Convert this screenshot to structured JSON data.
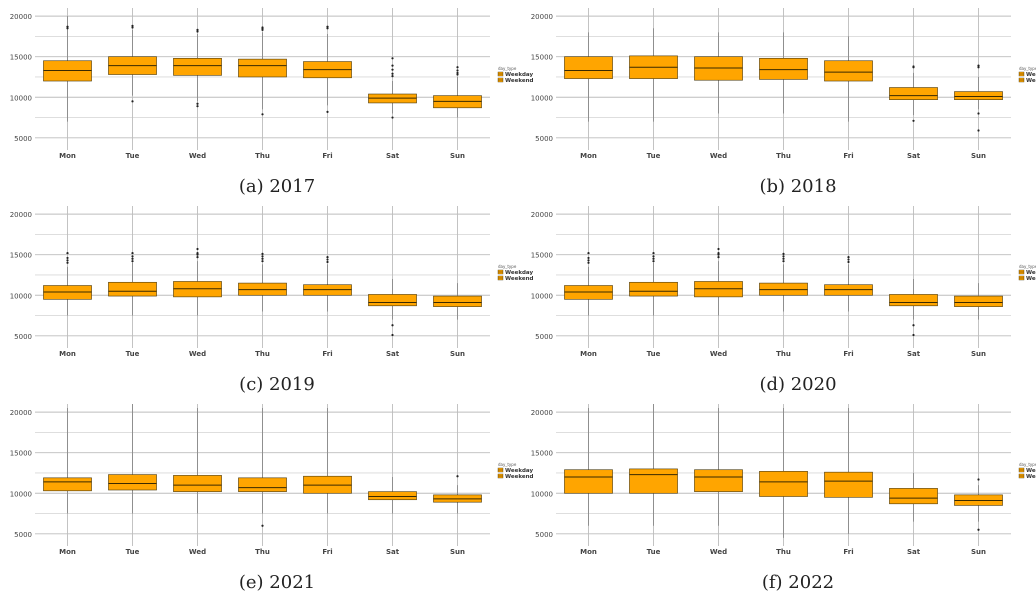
{
  "figure": {
    "captions": [
      "(a) 2017",
      "(b) 2018",
      "(c) 2019",
      "(d) 2020",
      "(e) 2021",
      "(f) 2022"
    ]
  },
  "colors": {
    "box_fill": "#ffa500",
    "box_stroke": "#4a3a10",
    "grid": "#bdbdbd",
    "median": "#3a2a00"
  },
  "chart_data": [
    {
      "type": "box",
      "title": "",
      "categories": [
        "Mon",
        "Tue",
        "Wed",
        "Thu",
        "Fri",
        "Sat",
        "Sun"
      ],
      "ylim": [
        3500,
        21000
      ],
      "yticks": [
        5000,
        10000,
        15000,
        20000
      ],
      "legend": {
        "title": "day_type",
        "entries": [
          "Weekday",
          "Weekend"
        ],
        "position": "right"
      },
      "grid": true,
      "boxes": [
        {
          "q1": 12000,
          "median": 13300,
          "q3": 14500,
          "whisker_low": 7000,
          "whisker_high": 20000,
          "outliers": [
            18500,
            18700
          ]
        },
        {
          "q1": 12800,
          "median": 13900,
          "q3": 15000,
          "whisker_low": 10200,
          "whisker_high": 18300,
          "outliers": [
            18600,
            18800,
            9500
          ]
        },
        {
          "q1": 12700,
          "median": 13900,
          "q3": 14800,
          "whisker_low": 9500,
          "whisker_high": 17800,
          "outliers": [
            18100,
            18300,
            9200,
            8900
          ]
        },
        {
          "q1": 12500,
          "median": 13900,
          "q3": 14700,
          "whisker_low": 8500,
          "whisker_high": 18000,
          "outliers": [
            18300,
            18500,
            18600,
            7900
          ]
        },
        {
          "q1": 12400,
          "median": 13400,
          "q3": 14400,
          "whisker_low": 9000,
          "whisker_high": 17800,
          "outliers": [
            18500,
            18700,
            8200
          ]
        },
        {
          "q1": 9300,
          "median": 9900,
          "q3": 10400,
          "whisker_low": 8000,
          "whisker_high": 12000,
          "outliers": [
            12600,
            12900,
            13400,
            13900,
            14800,
            7500
          ]
        },
        {
          "q1": 8700,
          "median": 9500,
          "q3": 10200,
          "whisker_low": 7500,
          "whisker_high": 12500,
          "outliers": [
            12800,
            13000,
            13300,
            13700
          ]
        }
      ]
    },
    {
      "type": "box",
      "title": "",
      "categories": [
        "Mon",
        "Tue",
        "Wed",
        "Thu",
        "Fri",
        "Sat",
        "Sun"
      ],
      "ylim": [
        3500,
        21000
      ],
      "yticks": [
        5000,
        10000,
        15000,
        20000
      ],
      "legend": {
        "title": "day_type",
        "entries": [
          "Weekday",
          "Weekend"
        ],
        "position": "right"
      },
      "grid": true,
      "boxes": [
        {
          "q1": 12300,
          "median": 13300,
          "q3": 15000,
          "whisker_low": 7000,
          "whisker_high": 18000,
          "outliers": []
        },
        {
          "q1": 12300,
          "median": 13700,
          "q3": 15100,
          "whisker_low": 7000,
          "whisker_high": 18500,
          "outliers": []
        },
        {
          "q1": 12100,
          "median": 13600,
          "q3": 15000,
          "whisker_low": 8000,
          "whisker_high": 18000,
          "outliers": []
        },
        {
          "q1": 12200,
          "median": 13400,
          "q3": 14800,
          "whisker_low": 8000,
          "whisker_high": 18000,
          "outliers": []
        },
        {
          "q1": 12000,
          "median": 13100,
          "q3": 14500,
          "whisker_low": 7000,
          "whisker_high": 17500,
          "outliers": []
        },
        {
          "q1": 9700,
          "median": 10200,
          "q3": 11200,
          "whisker_low": 7800,
          "whisker_high": 13000,
          "outliers": [
            13700,
            13800,
            7100
          ]
        },
        {
          "q1": 9700,
          "median": 10100,
          "q3": 10700,
          "whisker_low": 8500,
          "whisker_high": 12500,
          "outliers": [
            13700,
            13900,
            8000,
            5900
          ]
        }
      ]
    },
    {
      "type": "box",
      "title": "",
      "categories": [
        "Mon",
        "Tue",
        "Wed",
        "Thu",
        "Fri",
        "Sat",
        "Sun"
      ],
      "ylim": [
        3500,
        21000
      ],
      "yticks": [
        5000,
        10000,
        15000,
        20000
      ],
      "legend": {
        "title": "day_type",
        "entries": [
          "Weekday",
          "Weekend"
        ],
        "position": "right"
      },
      "grid": true,
      "boxes": [
        {
          "q1": 9500,
          "median": 10400,
          "q3": 11200,
          "whisker_low": 7500,
          "whisker_high": 13500,
          "outliers": [
            14000,
            14300,
            14600,
            15200
          ]
        },
        {
          "q1": 9900,
          "median": 10500,
          "q3": 11600,
          "whisker_low": 7500,
          "whisker_high": 14000,
          "outliers": [
            14200,
            14500,
            14800,
            15200
          ]
        },
        {
          "q1": 9800,
          "median": 10800,
          "q3": 11700,
          "whisker_low": 7500,
          "whisker_high": 14200,
          "outliers": [
            14700,
            15000,
            15200,
            15700
          ]
        },
        {
          "q1": 10000,
          "median": 10700,
          "q3": 11500,
          "whisker_low": 8000,
          "whisker_high": 13800,
          "outliers": [
            14200,
            14500,
            14800,
            15100
          ]
        },
        {
          "q1": 10000,
          "median": 10700,
          "q3": 11300,
          "whisker_low": 8000,
          "whisker_high": 13800,
          "outliers": [
            14100,
            14400,
            14700
          ]
        },
        {
          "q1": 8700,
          "median": 9100,
          "q3": 10100,
          "whisker_low": 7000,
          "whisker_high": 12000,
          "outliers": [
            6300,
            5100
          ]
        },
        {
          "q1": 8600,
          "median": 9100,
          "q3": 9900,
          "whisker_low": 7000,
          "whisker_high": 11500,
          "outliers": []
        }
      ]
    },
    {
      "type": "box",
      "title": "",
      "categories": [
        "Mon",
        "Tue",
        "Wed",
        "Thu",
        "Fri",
        "Sat",
        "Sun"
      ],
      "ylim": [
        3500,
        21000
      ],
      "yticks": [
        5000,
        10000,
        15000,
        20000
      ],
      "legend": {
        "title": "day_type",
        "entries": [
          "Weekday",
          "Weekend"
        ],
        "position": "right"
      },
      "grid": true,
      "boxes": [
        {
          "q1": 9500,
          "median": 10400,
          "q3": 11200,
          "whisker_low": 7500,
          "whisker_high": 13500,
          "outliers": [
            14000,
            14300,
            14600,
            15200
          ]
        },
        {
          "q1": 9900,
          "median": 10500,
          "q3": 11600,
          "whisker_low": 7500,
          "whisker_high": 14000,
          "outliers": [
            14200,
            14500,
            14800,
            15200
          ]
        },
        {
          "q1": 9800,
          "median": 10800,
          "q3": 11700,
          "whisker_low": 7500,
          "whisker_high": 14200,
          "outliers": [
            14700,
            15000,
            15200,
            15700
          ]
        },
        {
          "q1": 10000,
          "median": 10700,
          "q3": 11500,
          "whisker_low": 8000,
          "whisker_high": 13800,
          "outliers": [
            14200,
            14500,
            14800,
            15100
          ]
        },
        {
          "q1": 10000,
          "median": 10700,
          "q3": 11300,
          "whisker_low": 8000,
          "whisker_high": 13800,
          "outliers": [
            14100,
            14400,
            14700
          ]
        },
        {
          "q1": 8700,
          "median": 9100,
          "q3": 10100,
          "whisker_low": 7000,
          "whisker_high": 12000,
          "outliers": [
            6300,
            5100
          ]
        },
        {
          "q1": 8600,
          "median": 9100,
          "q3": 9900,
          "whisker_low": 7000,
          "whisker_high": 11500,
          "outliers": []
        }
      ]
    },
    {
      "type": "box",
      "title": "",
      "categories": [
        "Mon",
        "Tue",
        "Wed",
        "Thu",
        "Fri",
        "Sat",
        "Sun"
      ],
      "ylim": [
        3500,
        21000
      ],
      "yticks": [
        5000,
        10000,
        15000,
        20000
      ],
      "legend": {
        "title": "day_type",
        "entries": [
          "Weekday",
          "Weekend"
        ],
        "position": "right"
      },
      "grid": true,
      "boxes": [
        {
          "q1": 10300,
          "median": 11400,
          "q3": 11900,
          "whisker_low": 7500,
          "whisker_high": 20500,
          "outliers": []
        },
        {
          "q1": 10400,
          "median": 11200,
          "q3": 12300,
          "whisker_low": 7500,
          "whisker_high": 21000,
          "outliers": []
        },
        {
          "q1": 10200,
          "median": 11000,
          "q3": 12200,
          "whisker_low": 7500,
          "whisker_high": 20500,
          "outliers": []
        },
        {
          "q1": 10200,
          "median": 10700,
          "q3": 11900,
          "whisker_low": 7500,
          "whisker_high": 20500,
          "outliers": [
            6000
          ]
        },
        {
          "q1": 10000,
          "median": 11000,
          "q3": 12100,
          "whisker_low": 7500,
          "whisker_high": 20500,
          "outliers": []
        },
        {
          "q1": 9200,
          "median": 9600,
          "q3": 10200,
          "whisker_low": 7500,
          "whisker_high": 12000,
          "outliers": []
        },
        {
          "q1": 8900,
          "median": 9300,
          "q3": 9800,
          "whisker_low": 7500,
          "whisker_high": 11000,
          "outliers": [
            12100
          ]
        }
      ]
    },
    {
      "type": "box",
      "title": "",
      "categories": [
        "Mon",
        "Tue",
        "Wed",
        "Thu",
        "Fri",
        "Sat",
        "Sun"
      ],
      "ylim": [
        3500,
        21000
      ],
      "yticks": [
        5000,
        10000,
        15000,
        20000
      ],
      "legend": {
        "title": "day_type",
        "entries": [
          "Weekday",
          "Weekend"
        ],
        "position": "right"
      },
      "grid": true,
      "boxes": [
        {
          "q1": 10000,
          "median": 12000,
          "q3": 12900,
          "whisker_low": 6000,
          "whisker_high": 20500,
          "outliers": []
        },
        {
          "q1": 10000,
          "median": 12300,
          "q3": 13000,
          "whisker_low": 6000,
          "whisker_high": 21000,
          "outliers": []
        },
        {
          "q1": 10200,
          "median": 12000,
          "q3": 12900,
          "whisker_low": 6000,
          "whisker_high": 20500,
          "outliers": []
        },
        {
          "q1": 9600,
          "median": 11400,
          "q3": 12700,
          "whisker_low": 4500,
          "whisker_high": 20500,
          "outliers": []
        },
        {
          "q1": 9500,
          "median": 11500,
          "q3": 12600,
          "whisker_low": 5000,
          "whisker_high": 20500,
          "outliers": []
        },
        {
          "q1": 8700,
          "median": 9400,
          "q3": 10600,
          "whisker_low": 6500,
          "whisker_high": 12500,
          "outliers": []
        },
        {
          "q1": 8500,
          "median": 9100,
          "q3": 9800,
          "whisker_low": 6500,
          "whisker_high": 11000,
          "outliers": [
            11700,
            5500
          ]
        }
      ]
    }
  ]
}
